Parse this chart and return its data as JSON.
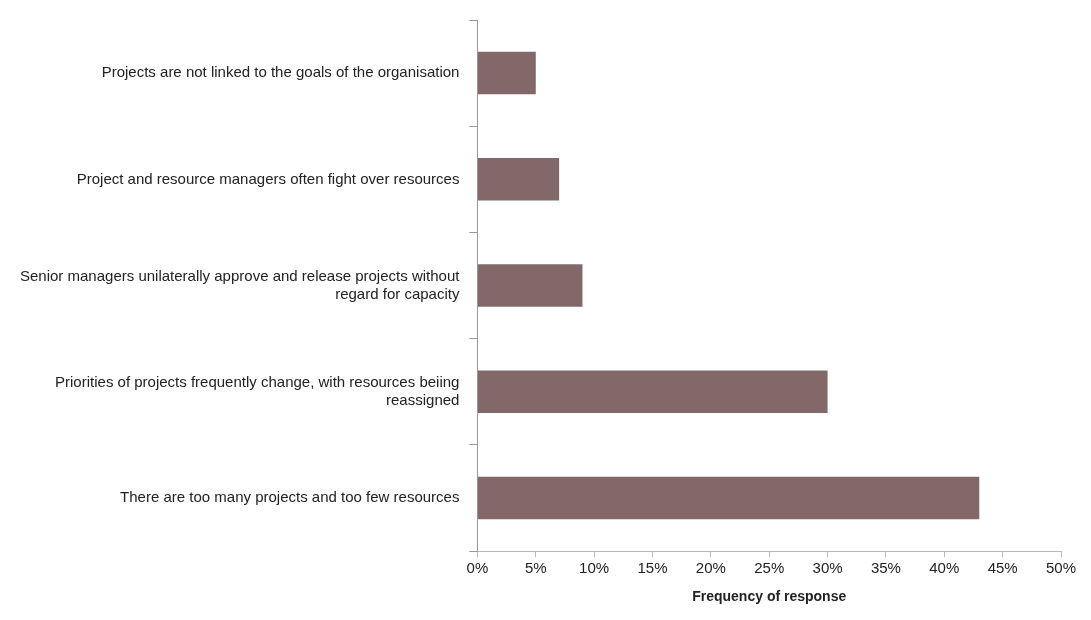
{
  "chart_data": {
    "type": "bar",
    "orientation": "horizontal",
    "xlabel": "Frequency of response",
    "categories": [
      "Projects are not linked to the goals of the organisation",
      "Project and resource managers often fight over resources",
      "Senior managers unilaterally approve and release projects without regard for capacity",
      "Priorities of projects frequently change, with resources beiing reassigned",
      "There are too many projects and too few resources"
    ],
    "values": [
      5,
      7,
      9,
      30,
      43
    ],
    "color": "#826868",
    "xlim": [
      0,
      50
    ],
    "xticks": [
      {
        "value": 0,
        "label": "0%"
      },
      {
        "value": 5,
        "label": "5%"
      },
      {
        "value": 10,
        "label": "10%"
      },
      {
        "value": 15,
        "label": "15%"
      },
      {
        "value": 20,
        "label": "20%"
      },
      {
        "value": 25,
        "label": "25%"
      },
      {
        "value": 30,
        "label": "30%"
      },
      {
        "value": 35,
        "label": "35%"
      },
      {
        "value": 40,
        "label": "40%"
      },
      {
        "value": 45,
        "label": "45%"
      },
      {
        "value": 50,
        "label": "50%"
      }
    ],
    "grid": false,
    "legend": false
  }
}
